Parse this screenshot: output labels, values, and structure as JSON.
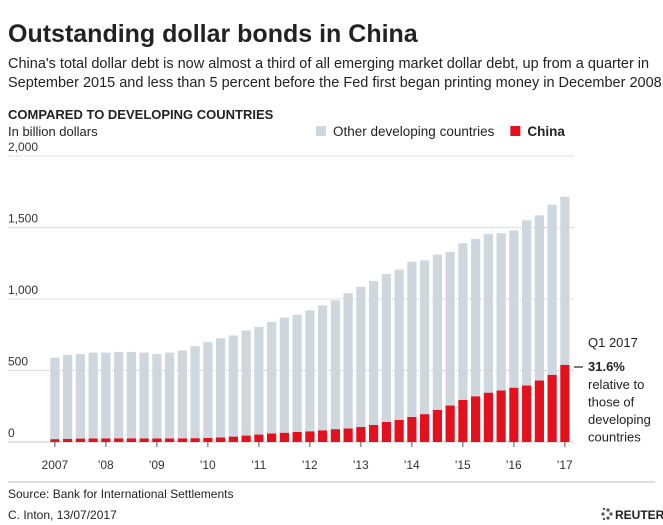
{
  "chart_data": {
    "type": "stacked_bar",
    "title": "Outstanding dollar bonds in China",
    "subtitle": [
      "China's total dollar debt is now almost a third of all emerging market dollar debt, up from a quarter in",
      "September 2015 and less than 5 percent before the Fed first began printing money in December 2008."
    ],
    "heading": "COMPARED TO DEVELOPING COUNTRIES",
    "y_label": "In billion dollars",
    "categories": [
      "2007",
      null,
      null,
      null,
      "'08",
      null,
      null,
      null,
      "'09",
      null,
      null,
      null,
      "'10",
      null,
      null,
      null,
      "'11",
      null,
      null,
      null,
      "'12",
      null,
      null,
      null,
      "'13",
      null,
      null,
      null,
      "'14",
      null,
      null,
      null,
      "'15",
      null,
      null,
      null,
      "'16",
      null,
      null,
      null,
      "'17"
    ],
    "series": [
      {
        "name": "Other developing countries",
        "color": "#cdd7dd",
        "values": [
          570,
          588,
          591,
          600,
          600,
          604,
          604,
          600,
          590,
          600,
          614,
          643,
          672,
          693,
          707,
          735,
          753,
          780,
          805,
          820,
          845,
          873,
          900,
          945,
          980,
          1005,
          1035,
          1050,
          1085,
          1075,
          1085,
          1075,
          1095,
          1100,
          1110,
          1100,
          1100,
          1155,
          1155,
          1190,
          1175
        ]
      },
      {
        "name": "China",
        "color": "#e3101e",
        "values": [
          20,
          22,
          24,
          25,
          25,
          26,
          26,
          25,
          25,
          25,
          26,
          27,
          28,
          32,
          38,
          45,
          52,
          60,
          65,
          70,
          75,
          82,
          90,
          95,
          105,
          120,
          140,
          155,
          175,
          195,
          225,
          255,
          295,
          320,
          345,
          360,
          380,
          395,
          430,
          470,
          540
        ]
      }
    ],
    "ylim": [
      0,
      2000
    ],
    "yticks": [
      0,
      500,
      {
        "value": 1000,
        "label": "1,000"
      },
      {
        "value": 1500,
        "label": "1,500"
      },
      {
        "value": 2000,
        "label": "2,000"
      }
    ],
    "grid": true,
    "annotation": {
      "period": "Q1 2017",
      "value_label": "31.6%",
      "text": [
        "relative to",
        "those of",
        "developing",
        "countries"
      ]
    },
    "source": "Source: Bank for International Settlements",
    "credit": "C. Inton, 13/07/2017",
    "brand": "REUTERS"
  }
}
